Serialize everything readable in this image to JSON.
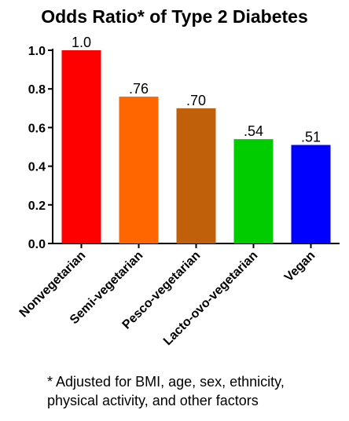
{
  "chart_data": {
    "type": "bar",
    "title": "Odds Ratio* of Type 2 Diabetes",
    "categories": [
      "Nonvegetarian",
      "Semi-vegetarian",
      "Pesco-vegetarian",
      "Lacto-ovo-vegetarian",
      "Vegan"
    ],
    "values": [
      1.0,
      0.76,
      0.7,
      0.54,
      0.51
    ],
    "value_labels": [
      "1.0",
      ".76",
      ".70",
      ".54",
      ".51"
    ],
    "colors": [
      "#ff0000",
      "#ff6600",
      "#c0600a",
      "#00cc00",
      "#0000ff"
    ],
    "ylim": [
      0,
      1.0
    ],
    "yticks": [
      0.0,
      0.2,
      0.4,
      0.6,
      0.8,
      1.0
    ],
    "ytick_labels": [
      "0.0",
      "0.2",
      "0.4",
      "0.6",
      "0.8",
      "1.0"
    ],
    "xlabel": "",
    "ylabel": "",
    "grid": false
  },
  "footnote": {
    "line1": "* Adjusted for BMI, age, sex, ethnicity,",
    "line2": "physical activity, and other factors"
  }
}
